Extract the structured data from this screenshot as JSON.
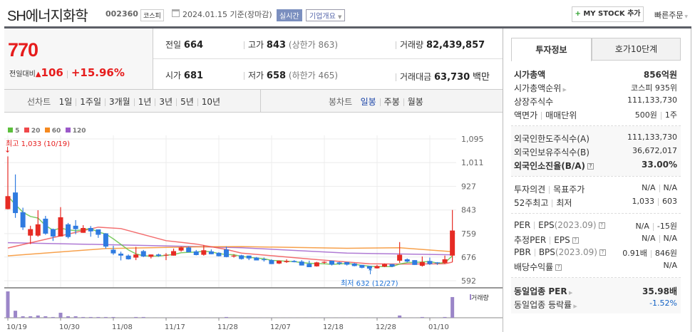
{
  "header": {
    "title": "SH에너지화학",
    "code": "002360",
    "market_badge": "코스피",
    "date": "2024.01.15 기준(장마감)",
    "realtime_label": "실시간",
    "company_menu": "기업개요",
    "mystock_button": "MY STOCK 추가",
    "quick_order": "빠른주문"
  },
  "price": {
    "current": "770",
    "change_label": "전일대비",
    "change": "106",
    "change_pct": "+15.96%"
  },
  "stats": {
    "prev_label": "전일",
    "prev": "664",
    "high_label": "고가",
    "high": "843",
    "upper_limit": "(상한가 863)",
    "volume_label": "거래량",
    "volume": "82,439,857",
    "open_label": "시가",
    "open": "681",
    "low_label": "저가",
    "low": "658",
    "lower_limit": "(하한가 465)",
    "amount_label": "거래대금",
    "amount": "63,730",
    "amount_unit": "백만"
  },
  "toolbar": {
    "line_label": "선차트",
    "line_periods": [
      "1일",
      "1주일",
      "3개월",
      "1년",
      "3년",
      "5년",
      "10년"
    ],
    "candle_label": "봉차트",
    "candle_periods": [
      "일봉",
      "주봉",
      "월봉"
    ],
    "active_candle": "일봉"
  },
  "colors": {
    "up": "#e62b24",
    "down": "#2f7be0",
    "ma5": "#5cbf3c",
    "ma20": "#f0484a",
    "ma60": "#f5891f",
    "ma120": "#9b59c9",
    "volume": "#9b86c8"
  },
  "chart_data": {
    "type": "candlestick",
    "legend": [
      "5",
      "20",
      "60",
      "120"
    ],
    "y_ticks": [
      "1,095",
      "1,011",
      "927",
      "843",
      "759",
      "676",
      "592"
    ],
    "ylim": [
      592,
      1095
    ],
    "x_ticks": [
      "10/19",
      "10/30",
      "11/08",
      "11/17",
      "11/28",
      "12/07",
      "12/18",
      "12/28",
      "01/10"
    ],
    "max_annotation": "최고 1,033 (10/19)",
    "min_annotation": "최저 632 (12/27)",
    "volume_label": "거래량",
    "ohlc": [
      [
        846,
        1033,
        845,
        892
      ],
      [
        905,
        969,
        815,
        832
      ],
      [
        835,
        851,
        772,
        781
      ],
      [
        752,
        787,
        722,
        775
      ],
      [
        752,
        842,
        748,
        792
      ],
      [
        812,
        822,
        755,
        759
      ],
      [
        775,
        777,
        733,
        749
      ],
      [
        749,
        853,
        749,
        817
      ],
      [
        792,
        797,
        742,
        747
      ],
      [
        787,
        807,
        757,
        775
      ],
      [
        762,
        789,
        762,
        779
      ],
      [
        779,
        786,
        748,
        767
      ],
      [
        774,
        774,
        744,
        755
      ],
      [
        760,
        761,
        706,
        713
      ],
      [
        702,
        716,
        684,
        689
      ],
      [
        688,
        695,
        664,
        681
      ],
      [
        681,
        685,
        667,
        668
      ],
      [
        674,
        712,
        665,
        685
      ],
      [
        697,
        701,
        676,
        678
      ],
      [
        677,
        685,
        671,
        685
      ],
      [
        685,
        688,
        677,
        680
      ],
      [
        681,
        690,
        665,
        684
      ],
      [
        681,
        706,
        681,
        697
      ],
      [
        699,
        713,
        695,
        710
      ],
      [
        710,
        713,
        693,
        693
      ],
      [
        696,
        701,
        682,
        683
      ],
      [
        684,
        718,
        681,
        700
      ],
      [
        696,
        703,
        686,
        686
      ],
      [
        691,
        693,
        678,
        679
      ],
      [
        703,
        713,
        675,
        676
      ],
      [
        680,
        686,
        674,
        681
      ],
      [
        682,
        684,
        667,
        669
      ],
      [
        681,
        681,
        665,
        671
      ],
      [
        674,
        676,
        664,
        664
      ],
      [
        668,
        674,
        660,
        665
      ],
      [
        665,
        668,
        651,
        651
      ],
      [
        653,
        664,
        651,
        663
      ],
      [
        658,
        668,
        655,
        662
      ],
      [
        662,
        665,
        657,
        658
      ],
      [
        660,
        665,
        646,
        646
      ],
      [
        652,
        663,
        640,
        640
      ],
      [
        643,
        659,
        642,
        657
      ],
      [
        657,
        661,
        652,
        659
      ],
      [
        663,
        663,
        646,
        649
      ],
      [
        657,
        659,
        648,
        652
      ],
      [
        658,
        658,
        646,
        649
      ],
      [
        653,
        655,
        643,
        644
      ],
      [
        648,
        648,
        636,
        638
      ],
      [
        644,
        644,
        632,
        635
      ],
      [
        636,
        648,
        635,
        644
      ],
      [
        642,
        653,
        640,
        651
      ],
      [
        651,
        651,
        640,
        642
      ],
      [
        663,
        729,
        655,
        684
      ],
      [
        668,
        671,
        657,
        660
      ],
      [
        665,
        665,
        648,
        648
      ],
      [
        645,
        678,
        642,
        658
      ],
      [
        662,
        674,
        648,
        651
      ],
      [
        657,
        658,
        648,
        654
      ],
      [
        655,
        681,
        652,
        668
      ],
      [
        681,
        843,
        658,
        770
      ]
    ],
    "volume_millions": [
      105,
      28,
      6,
      6,
      9,
      6,
      3,
      20,
      6,
      6,
      3,
      3,
      3,
      3,
      3,
      0.5,
      0.5,
      3,
      3,
      0.5,
      0.5,
      0.5,
      0.5,
      0.5,
      0.5,
      0.5,
      0.5,
      0.5,
      0.5,
      3,
      0.5,
      0.5,
      0.5,
      0.5,
      0.5,
      0.5,
      0.5,
      0.5,
      0.5,
      0.5,
      0.5,
      0.5,
      0.5,
      0.5,
      0.5,
      0.5,
      0.5,
      0.5,
      0.5,
      0.5,
      0.5,
      0.5,
      9,
      0.5,
      0.5,
      3,
      0.5,
      0.5,
      3,
      82.44
    ],
    "ma20": [
      [
        0,
        708
      ],
      [
        12,
        782
      ],
      [
        15,
        777
      ],
      [
        21,
        734
      ],
      [
        25,
        722
      ],
      [
        29,
        703
      ],
      [
        31,
        690
      ],
      [
        40,
        669
      ],
      [
        48,
        652
      ],
      [
        52,
        651
      ],
      [
        58,
        652
      ],
      [
        59,
        658
      ]
    ],
    "ma60": [
      [
        0,
        680
      ],
      [
        13,
        706
      ],
      [
        25,
        712
      ],
      [
        31,
        713
      ],
      [
        45,
        707
      ],
      [
        52,
        709
      ],
      [
        58,
        697
      ],
      [
        59,
        695
      ]
    ],
    "ma120": [
      [
        0,
        727
      ],
      [
        13,
        720
      ],
      [
        25,
        713
      ],
      [
        31,
        709
      ],
      [
        45,
        690
      ],
      [
        59,
        684
      ]
    ]
  },
  "panel": {
    "tabs": [
      "투자정보",
      "호가10단계"
    ],
    "rows1": [
      [
        "시가총액",
        "856억원"
      ],
      [
        "시가총액순위",
        "코스피 935위"
      ],
      [
        "상장주식수",
        "111,133,730"
      ],
      [
        "액면가",
        "매매단위",
        "500원",
        "1주"
      ]
    ],
    "rows2": [
      [
        "외국인한도주식수(A)",
        "111,133,730"
      ],
      [
        "외국인보유주식수(B)",
        "36,672,017"
      ],
      [
        "외국인소진율(B/A)",
        "33.00%"
      ]
    ],
    "rows3": [
      [
        "투자의견",
        "목표주가",
        "N/A",
        "N/A"
      ],
      [
        "52주최고",
        "최저",
        "1,033",
        "603"
      ]
    ],
    "rows4": [
      [
        "PER",
        "EPS",
        "(2023.09)",
        "N/A",
        "-15원"
      ],
      [
        "추정PER",
        "EPS",
        "",
        "N/A",
        "N/A"
      ],
      [
        "PBR",
        "BPS",
        "(2023.09)",
        "0.91배",
        "846원"
      ],
      [
        "배당수익률",
        "",
        "",
        "N/A",
        ""
      ]
    ],
    "rows5": [
      [
        "동일업종 PER",
        "35.98배"
      ],
      [
        "동일업종 등락률",
        "-1.52%"
      ]
    ]
  }
}
